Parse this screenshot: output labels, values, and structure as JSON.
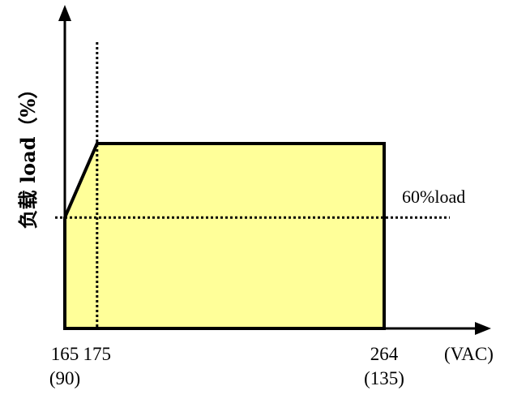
{
  "chart_data": {
    "type": "area",
    "ylabel": "负载 load（%）",
    "x_unit": "(VAC)",
    "x_range": [
      165,
      264
    ],
    "y_range": [
      0,
      100
    ],
    "ticks": [
      {
        "value": 165,
        "label": "165",
        "sublabel": "(90)"
      },
      {
        "value": 175,
        "label": "175",
        "sublabel": ""
      },
      {
        "value": 264,
        "label": "264",
        "sublabel": "(135)"
      }
    ],
    "series": [
      {
        "points": [
          {
            "x": 165,
            "y": 60
          },
          {
            "x": 175,
            "y": 100
          },
          {
            "x": 264,
            "y": 100
          },
          {
            "x": 264,
            "y": 0
          },
          {
            "x": 165,
            "y": 0
          }
        ]
      }
    ],
    "reference_lines": [
      {
        "axis": "y",
        "value": 60,
        "label": "60%load"
      },
      {
        "axis": "x",
        "value": 175,
        "label": ""
      }
    ],
    "fill_color": "#ffff99",
    "line_color": "#000000"
  }
}
